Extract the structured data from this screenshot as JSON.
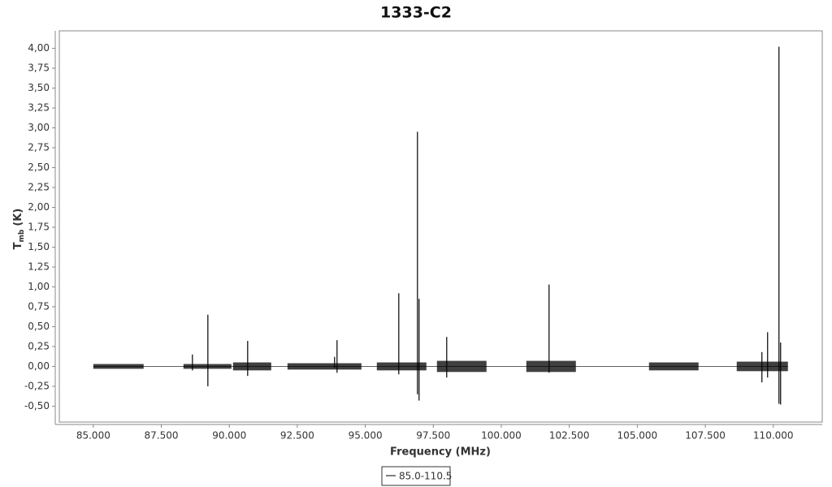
{
  "chart_data": {
    "type": "spectrum",
    "title": "1333-C2",
    "xlabel": "Frequency (MHz)",
    "ylabel": "T",
    "ylabel_sub": "mb",
    "ylabel_unit": "(K)",
    "xlim": [
      83750,
      111800
    ],
    "ylim": [
      -0.7,
      4.22
    ],
    "xticks": [
      {
        "value": 85000,
        "label": "85.000"
      },
      {
        "value": 87500,
        "label": "87.500"
      },
      {
        "value": 90000,
        "label": "90.000"
      },
      {
        "value": 92500,
        "label": "92.500"
      },
      {
        "value": 95000,
        "label": "95.000"
      },
      {
        "value": 97500,
        "label": "97.500"
      },
      {
        "value": 100000,
        "label": "100.000"
      },
      {
        "value": 102500,
        "label": "102.500"
      },
      {
        "value": 105000,
        "label": "105.000"
      },
      {
        "value": 107500,
        "label": "107.500"
      },
      {
        "value": 110000,
        "label": "110.000"
      }
    ],
    "yticks": [
      {
        "value": -0.5,
        "label": "-0,50"
      },
      {
        "value": -0.25,
        "label": "-0,25"
      },
      {
        "value": 0,
        "label": "0,00"
      },
      {
        "value": 0.25,
        "label": "0,25"
      },
      {
        "value": 0.5,
        "label": "0,50"
      },
      {
        "value": 0.75,
        "label": "0,75"
      },
      {
        "value": 1,
        "label": "1,00"
      },
      {
        "value": 1.25,
        "label": "1,25"
      },
      {
        "value": 1.5,
        "label": "1,50"
      },
      {
        "value": 1.75,
        "label": "1,75"
      },
      {
        "value": 2,
        "label": "2,00"
      },
      {
        "value": 2.25,
        "label": "2,25"
      },
      {
        "value": 2.5,
        "label": "2,50"
      },
      {
        "value": 2.75,
        "label": "2,75"
      },
      {
        "value": 3,
        "label": "3,00"
      },
      {
        "value": 3.25,
        "label": "3,25"
      },
      {
        "value": 3.5,
        "label": "3,50"
      },
      {
        "value": 3.75,
        "label": "3,75"
      },
      {
        "value": 4,
        "label": "4,00"
      }
    ],
    "series": [
      {
        "name": "85.0-110.5",
        "color": "#000000",
        "bands": [
          {
            "x0": 85000,
            "x1": 86850,
            "lo": -0.03,
            "hi": 0.03
          },
          {
            "x0": 88315,
            "x1": 90078,
            "lo": -0.03,
            "hi": 0.03
          },
          {
            "x0": 90137,
            "x1": 91541,
            "lo": -0.05,
            "hi": 0.05
          },
          {
            "x0": 92139,
            "x1": 94857,
            "lo": -0.04,
            "hi": 0.04
          },
          {
            "x0": 95424,
            "x1": 97246,
            "lo": -0.05,
            "hi": 0.05
          },
          {
            "x0": 97634,
            "x1": 99456,
            "lo": -0.07,
            "hi": 0.07
          },
          {
            "x0": 100920,
            "x1": 102742,
            "lo": -0.07,
            "hi": 0.07
          },
          {
            "x0": 105430,
            "x1": 107252,
            "lo": -0.05,
            "hi": 0.05
          },
          {
            "x0": 108656,
            "x1": 110538,
            "lo": -0.06,
            "hi": 0.06
          }
        ],
        "spikes": [
          {
            "x": 88644,
            "top": 0.15,
            "bottom": -0.05
          },
          {
            "x": 89212,
            "top": 0.65,
            "bottom": -0.25
          },
          {
            "x": 90675,
            "top": 0.32,
            "bottom": -0.12
          },
          {
            "x": 93871,
            "top": 0.12,
            "bottom": -0.02
          },
          {
            "x": 93961,
            "top": 0.33,
            "bottom": -0.08
          },
          {
            "x": 96231,
            "top": 0.92,
            "bottom": -0.1
          },
          {
            "x": 96918,
            "top": 2.95,
            "bottom": -0.35
          },
          {
            "x": 96977,
            "top": 0.85,
            "bottom": -0.43
          },
          {
            "x": 97993,
            "top": 0.37,
            "bottom": -0.14
          },
          {
            "x": 101756,
            "top": 1.03,
            "bottom": -0.08
          },
          {
            "x": 109582,
            "top": 0.18,
            "bottom": -0.2
          },
          {
            "x": 109791,
            "top": 0.43,
            "bottom": -0.14
          },
          {
            "x": 110209,
            "top": 4.02,
            "bottom": -0.47
          },
          {
            "x": 110269,
            "top": 0.3,
            "bottom": -0.48
          }
        ]
      }
    ]
  }
}
